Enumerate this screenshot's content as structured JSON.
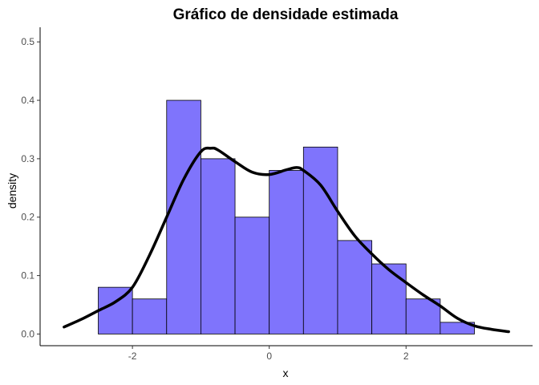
{
  "chart_data": {
    "type": "histogram",
    "title": "Gráfico de densidade estimada",
    "xlabel": "x",
    "ylabel": "density",
    "xlim": [
      -3.35,
      3.85
    ],
    "ylim": [
      -0.02,
      0.525
    ],
    "x_ticks": [
      -2,
      0,
      2
    ],
    "x_tick_labels": [
      "-2",
      "0",
      "2"
    ],
    "y_ticks": [
      0.0,
      0.1,
      0.2,
      0.3,
      0.4,
      0.5
    ],
    "y_tick_labels": [
      "0.0",
      "0.1",
      "0.2",
      "0.3",
      "0.4",
      "0.5"
    ],
    "grid": false,
    "legend": "none",
    "bins": [
      {
        "x0": -2.5,
        "x1": -2.0,
        "density": 0.08
      },
      {
        "x0": -2.0,
        "x1": -1.5,
        "density": 0.06
      },
      {
        "x0": -1.5,
        "x1": -1.0,
        "density": 0.4
      },
      {
        "x0": -1.0,
        "x1": -0.5,
        "density": 0.3
      },
      {
        "x0": -0.5,
        "x1": 0.0,
        "density": 0.2
      },
      {
        "x0": 0.0,
        "x1": 0.5,
        "density": 0.28
      },
      {
        "x0": 0.5,
        "x1": 1.0,
        "density": 0.32
      },
      {
        "x0": 1.0,
        "x1": 1.5,
        "density": 0.16
      },
      {
        "x0": 1.5,
        "x1": 2.0,
        "density": 0.12
      },
      {
        "x0": 2.0,
        "x1": 2.5,
        "density": 0.06
      },
      {
        "x0": 2.5,
        "x1": 3.0,
        "density": 0.02
      }
    ],
    "density_curve": {
      "x": [
        -3.0,
        -2.75,
        -2.5,
        -2.25,
        -2.0,
        -1.75,
        -1.5,
        -1.25,
        -1.0,
        -0.85,
        -0.75,
        -0.5,
        -0.25,
        0.0,
        0.25,
        0.4,
        0.5,
        0.75,
        1.0,
        1.25,
        1.5,
        1.75,
        2.0,
        2.25,
        2.5,
        2.75,
        3.0,
        3.25,
        3.5
      ],
      "y": [
        0.012,
        0.025,
        0.04,
        0.055,
        0.08,
        0.135,
        0.2,
        0.265,
        0.312,
        0.318,
        0.315,
        0.295,
        0.277,
        0.273,
        0.281,
        0.285,
        0.28,
        0.255,
        0.21,
        0.168,
        0.137,
        0.11,
        0.088,
        0.067,
        0.048,
        0.027,
        0.014,
        0.008,
        0.004
      ]
    },
    "colors": {
      "bar_fill": "#7f74fc",
      "bar_stroke": "#000000",
      "curve": "#000000",
      "axis": "#000000"
    }
  }
}
